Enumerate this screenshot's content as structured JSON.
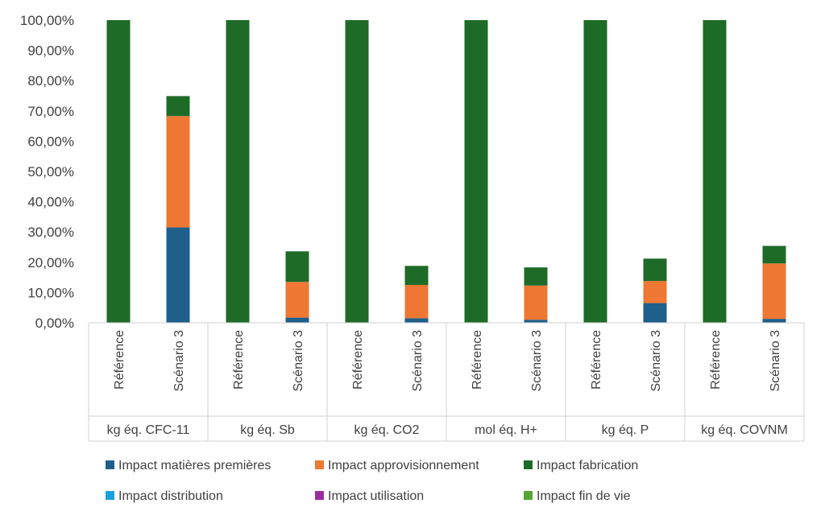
{
  "chart_data": {
    "type": "bar",
    "stacked": true,
    "title": "",
    "xlabel": "",
    "ylabel": "",
    "ylim": [
      0,
      100
    ],
    "yticks": [
      "0,00%",
      "10,00%",
      "20,00%",
      "30,00%",
      "40,00%",
      "50,00%",
      "60,00%",
      "70,00%",
      "80,00%",
      "90,00%",
      "100,00%"
    ],
    "groups": [
      "kg éq. CFC-11",
      "kg éq. Sb",
      "kg éq. CO2",
      "mol éq. H+",
      "kg éq. P",
      "kg éq. COVNM"
    ],
    "bar_labels": [
      "Référence",
      "Scénario 3"
    ],
    "series": [
      {
        "name": "Impact matières premières",
        "color": "#1f5f8b",
        "values": [
          [
            0,
            31.5
          ],
          [
            0,
            1.7
          ],
          [
            0,
            1.5
          ],
          [
            0,
            1.0
          ],
          [
            0,
            6.5
          ],
          [
            0,
            1.3
          ]
        ]
      },
      {
        "name": "Impact approvisionnement",
        "color": "#ee7733",
        "values": [
          [
            0,
            36.8
          ],
          [
            0,
            11.8
          ],
          [
            0,
            11.0
          ],
          [
            0,
            11.3
          ],
          [
            0,
            7.3
          ],
          [
            0,
            18.3
          ]
        ]
      },
      {
        "name": "Impact fabrication",
        "color": "#1e6b28",
        "values": [
          [
            100,
            6.6
          ],
          [
            100,
            10.1
          ],
          [
            100,
            6.3
          ],
          [
            100,
            6.0
          ],
          [
            100,
            7.4
          ],
          [
            100,
            5.8
          ]
        ]
      },
      {
        "name": "Impact distribution",
        "color": "#1aa0dc",
        "values": [
          [
            0,
            0
          ],
          [
            0,
            0
          ],
          [
            0,
            0
          ],
          [
            0,
            0
          ],
          [
            0,
            0
          ],
          [
            0,
            0
          ]
        ]
      },
      {
        "name": "Impact utilisation",
        "color": "#9b2c9e",
        "values": [
          [
            0,
            0
          ],
          [
            0,
            0
          ],
          [
            0,
            0
          ],
          [
            0,
            0
          ],
          [
            0,
            0
          ],
          [
            0,
            0
          ]
        ]
      },
      {
        "name": "Impact fin de vie",
        "color": "#55a535",
        "values": [
          [
            0,
            0
          ],
          [
            0,
            0
          ],
          [
            0,
            0
          ],
          [
            0,
            0
          ],
          [
            0,
            0
          ],
          [
            0,
            0
          ]
        ]
      }
    ],
    "legend_position": "bottom",
    "grid": false
  }
}
